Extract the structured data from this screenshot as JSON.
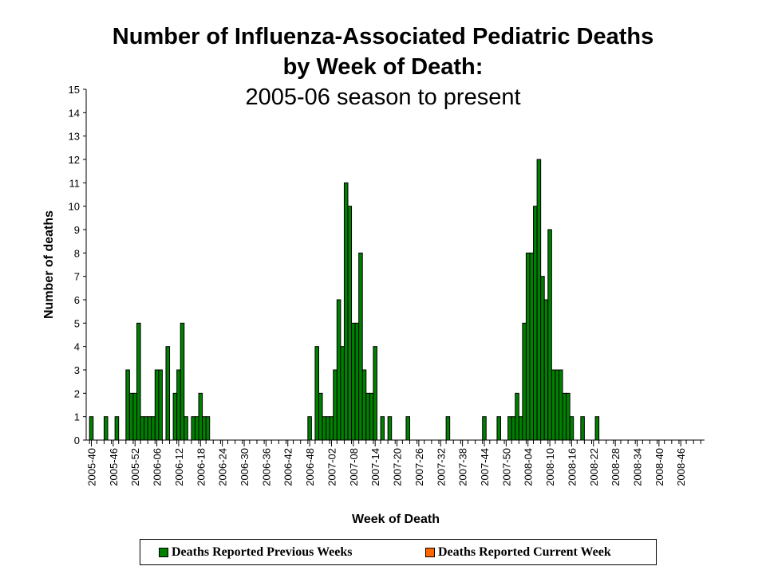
{
  "chart_data": {
    "type": "bar",
    "title": [
      "Number of Influenza-Associated Pediatric Deaths",
      "by Week of Death:",
      "2005-06 season to present"
    ],
    "xlabel": "Week of Death",
    "ylabel": "Number of deaths",
    "ylim": [
      0,
      15
    ],
    "yticks": [
      0,
      1,
      2,
      3,
      4,
      5,
      6,
      7,
      8,
      9,
      10,
      11,
      12,
      13,
      14,
      15
    ],
    "grid": false,
    "legend_position": "bottom",
    "colors": {
      "previous": "#008000",
      "current": "#ff6600",
      "outline": "#000000"
    },
    "category_range": {
      "first": "2005-40",
      "last": "2008-52"
    },
    "x_tick_labels": [
      "2005-40",
      "2005-46",
      "2005-52",
      "2006-06",
      "2006-12",
      "2006-18",
      "2006-24",
      "2006-30",
      "2006-36",
      "2006-42",
      "2006-48",
      "2007-02",
      "2007-08",
      "2007-14",
      "2007-20",
      "2007-26",
      "2007-32",
      "2007-38",
      "2007-44",
      "2007-50",
      "2008-04",
      "2008-10",
      "2008-16",
      "2008-22",
      "2008-28",
      "2008-34",
      "2008-40",
      "2008-46"
    ],
    "series": [
      {
        "name": "Deaths Reported Previous Weeks",
        "color": "#008000",
        "points": [
          {
            "week": "2005-40",
            "value": 1
          },
          {
            "week": "2005-44",
            "value": 1
          },
          {
            "week": "2005-47",
            "value": 1
          },
          {
            "week": "2005-50",
            "value": 3
          },
          {
            "week": "2005-51",
            "value": 2
          },
          {
            "week": "2005-52",
            "value": 2
          },
          {
            "week": "2006-01",
            "value": 5
          },
          {
            "week": "2006-02",
            "value": 1
          },
          {
            "week": "2006-03",
            "value": 1
          },
          {
            "week": "2006-04",
            "value": 1
          },
          {
            "week": "2006-05",
            "value": 1
          },
          {
            "week": "2006-06",
            "value": 3
          },
          {
            "week": "2006-07",
            "value": 3
          },
          {
            "week": "2006-09",
            "value": 4
          },
          {
            "week": "2006-11",
            "value": 2
          },
          {
            "week": "2006-12",
            "value": 3
          },
          {
            "week": "2006-13",
            "value": 5
          },
          {
            "week": "2006-14",
            "value": 1
          },
          {
            "week": "2006-16",
            "value": 1
          },
          {
            "week": "2006-17",
            "value": 1
          },
          {
            "week": "2006-18",
            "value": 2
          },
          {
            "week": "2006-19",
            "value": 1
          },
          {
            "week": "2006-20",
            "value": 1
          },
          {
            "week": "2006-48",
            "value": 1
          },
          {
            "week": "2006-50",
            "value": 4
          },
          {
            "week": "2006-51",
            "value": 2
          },
          {
            "week": "2006-52",
            "value": 1
          },
          {
            "week": "2007-01",
            "value": 1
          },
          {
            "week": "2007-02",
            "value": 1
          },
          {
            "week": "2007-03",
            "value": 3
          },
          {
            "week": "2007-04",
            "value": 6
          },
          {
            "week": "2007-05",
            "value": 4
          },
          {
            "week": "2007-06",
            "value": 11
          },
          {
            "week": "2007-07",
            "value": 10
          },
          {
            "week": "2007-08",
            "value": 5
          },
          {
            "week": "2007-09",
            "value": 5
          },
          {
            "week": "2007-10",
            "value": 8
          },
          {
            "week": "2007-11",
            "value": 3
          },
          {
            "week": "2007-12",
            "value": 2
          },
          {
            "week": "2007-13",
            "value": 2
          },
          {
            "week": "2007-14",
            "value": 4
          },
          {
            "week": "2007-16",
            "value": 1
          },
          {
            "week": "2007-18",
            "value": 1
          },
          {
            "week": "2007-23",
            "value": 1
          },
          {
            "week": "2007-34",
            "value": 1
          },
          {
            "week": "2007-44",
            "value": 1
          },
          {
            "week": "2007-48",
            "value": 1
          },
          {
            "week": "2007-51",
            "value": 1
          },
          {
            "week": "2007-52",
            "value": 1
          },
          {
            "week": "2008-01",
            "value": 2
          },
          {
            "week": "2008-02",
            "value": 1
          },
          {
            "week": "2008-03",
            "value": 5
          },
          {
            "week": "2008-04",
            "value": 8
          },
          {
            "week": "2008-05",
            "value": 8
          },
          {
            "week": "2008-06",
            "value": 10
          },
          {
            "week": "2008-07",
            "value": 12
          },
          {
            "week": "2008-08",
            "value": 7
          },
          {
            "week": "2008-09",
            "value": 6
          },
          {
            "week": "2008-10",
            "value": 9
          },
          {
            "week": "2008-11",
            "value": 3
          },
          {
            "week": "2008-12",
            "value": 3
          },
          {
            "week": "2008-13",
            "value": 3
          },
          {
            "week": "2008-14",
            "value": 2
          },
          {
            "week": "2008-15",
            "value": 2
          },
          {
            "week": "2008-16",
            "value": 1
          },
          {
            "week": "2008-19",
            "value": 1
          },
          {
            "week": "2008-23",
            "value": 1
          }
        ]
      },
      {
        "name": "Deaths Reported Current Week",
        "color": "#ff6600",
        "points": []
      }
    ]
  },
  "legend": {
    "items": [
      {
        "label": "Deaths Reported Previous Weeks",
        "color": "#008000"
      },
      {
        "label": "Deaths Reported Current Week",
        "color": "#ff6600"
      }
    ]
  }
}
